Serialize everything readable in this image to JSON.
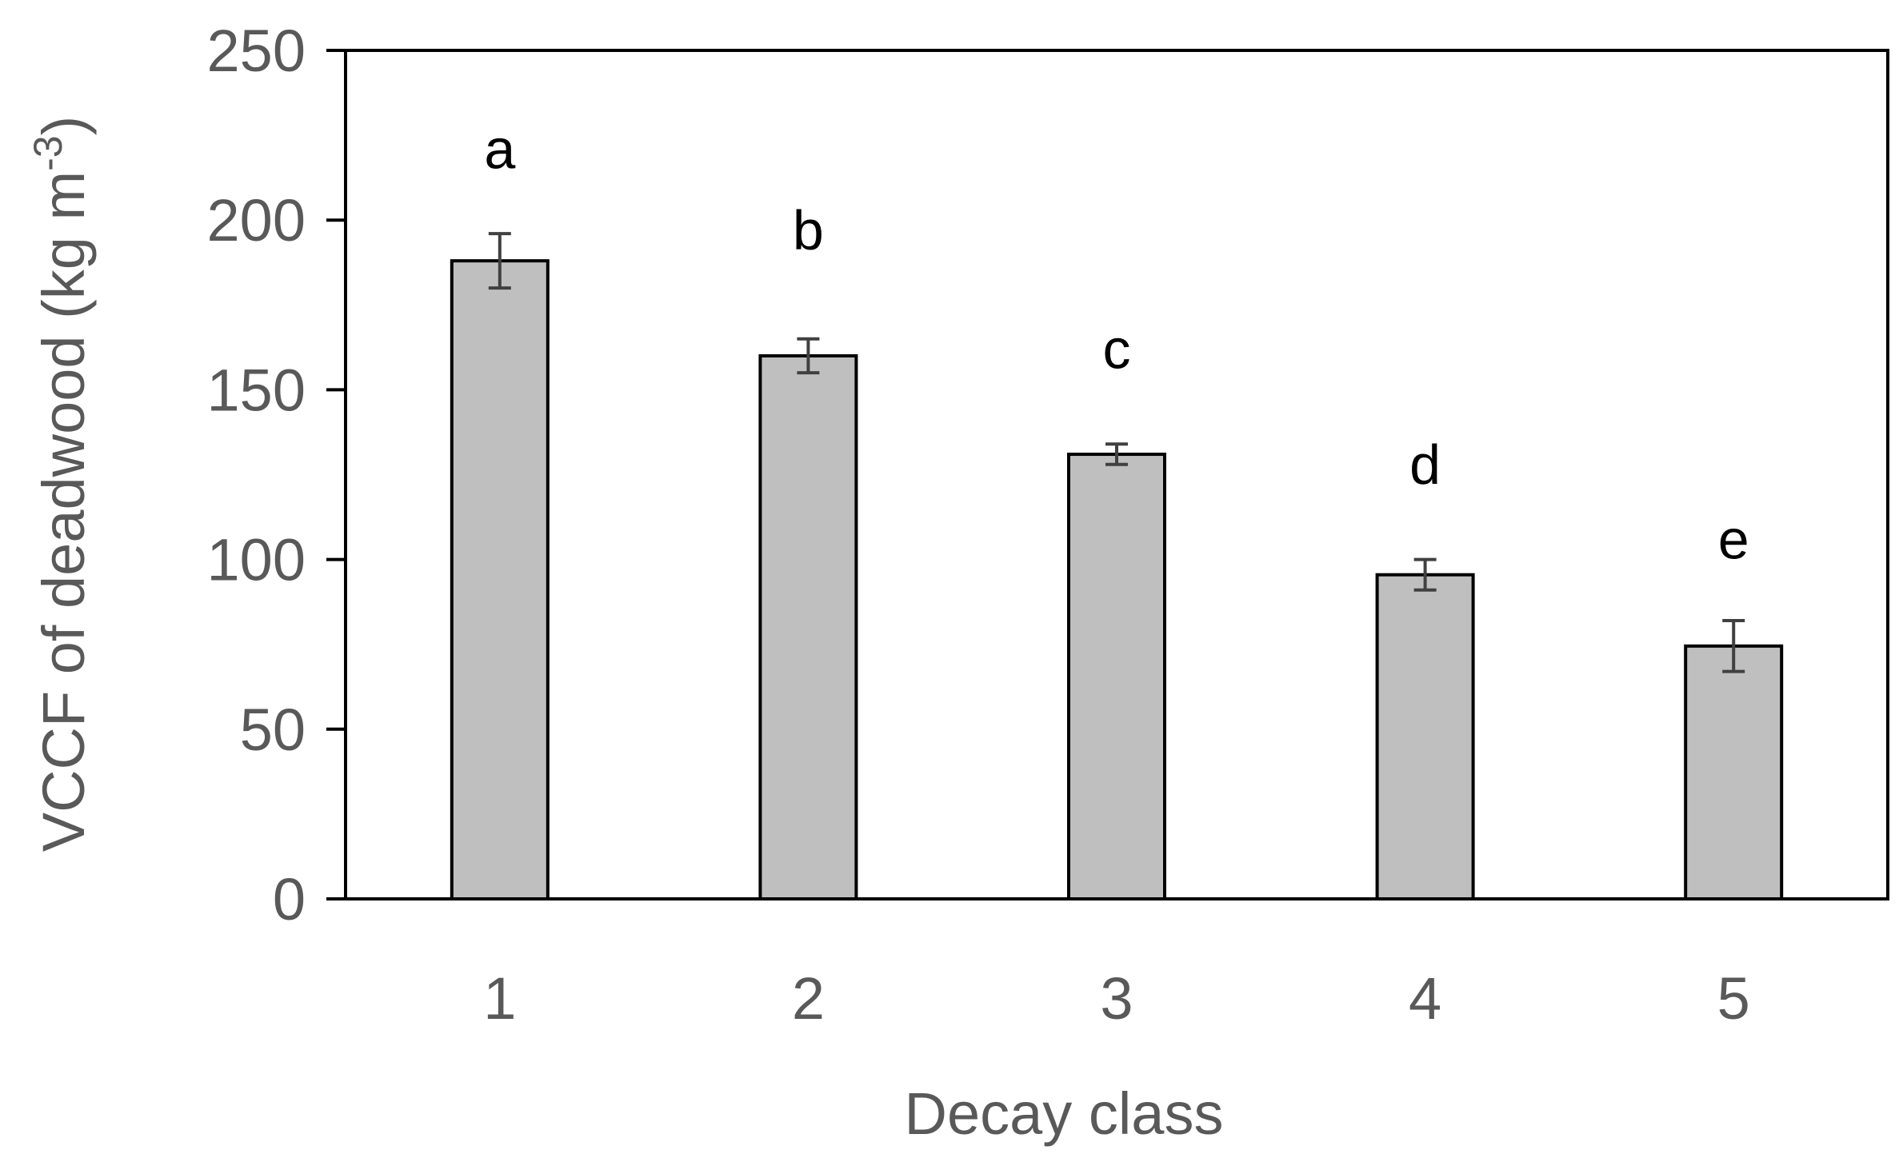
{
  "chart_data": {
    "type": "bar",
    "xlabel": "Decay class",
    "ylabel_main": "VCCF of deadwood (kg m",
    "ylabel_sup": "-3",
    "ylabel_close": ")",
    "ylim": [
      0,
      250
    ],
    "yticks": [
      0,
      50,
      100,
      150,
      200,
      250
    ],
    "categories": [
      "1",
      "2",
      "3",
      "4",
      "5"
    ],
    "values": [
      188,
      160,
      131,
      95.5,
      74.5
    ],
    "errors": [
      8,
      5,
      3,
      4.5,
      7.5
    ],
    "significance_letters": [
      "a",
      "b",
      "c",
      "d",
      "e"
    ],
    "letter_y_values": [
      220,
      196,
      161,
      127,
      105
    ],
    "grid": false,
    "bar_color": "#bfbfbf",
    "bar_edge_color": "#000000",
    "error_color": "#404040"
  }
}
